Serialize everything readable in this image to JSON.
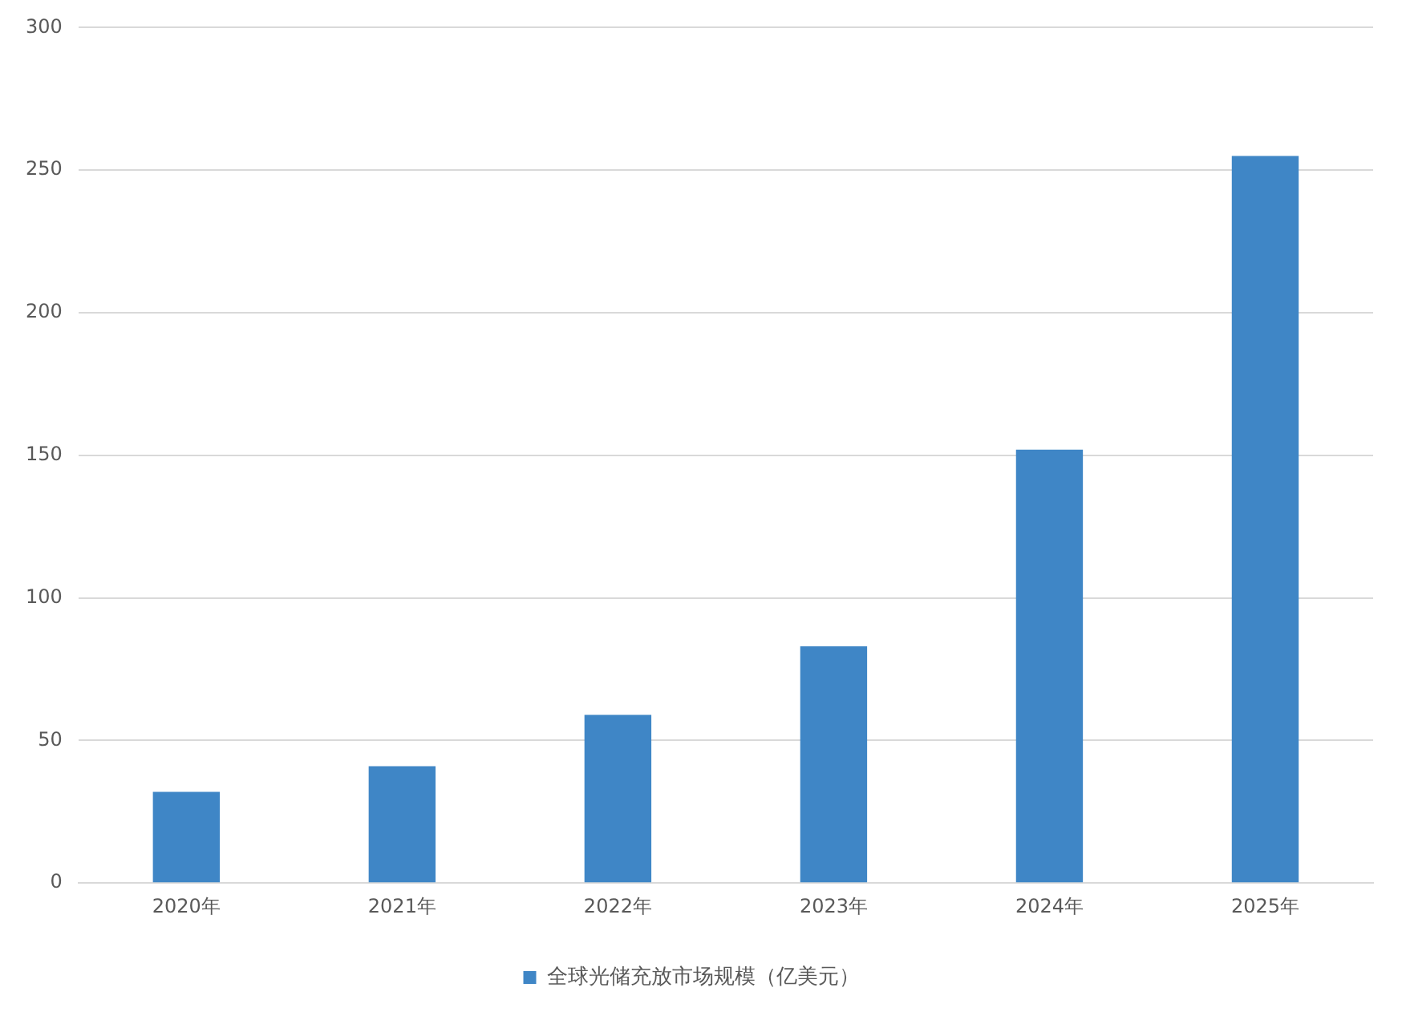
{
  "chart_data": {
    "type": "bar",
    "categories": [
      "2020年",
      "2021年",
      "2022年",
      "2023年",
      "2024年",
      "2025年"
    ],
    "series": [
      {
        "name": "全球光储充放市场规模（亿美元）",
        "color": "#3f86c6",
        "values": [
          32,
          41,
          59,
          83,
          152,
          255
        ]
      }
    ],
    "ylim": [
      0,
      300
    ],
    "yticks": [
      0,
      50,
      100,
      150,
      200,
      250,
      300
    ],
    "grid": "y",
    "legend": "bottom"
  }
}
